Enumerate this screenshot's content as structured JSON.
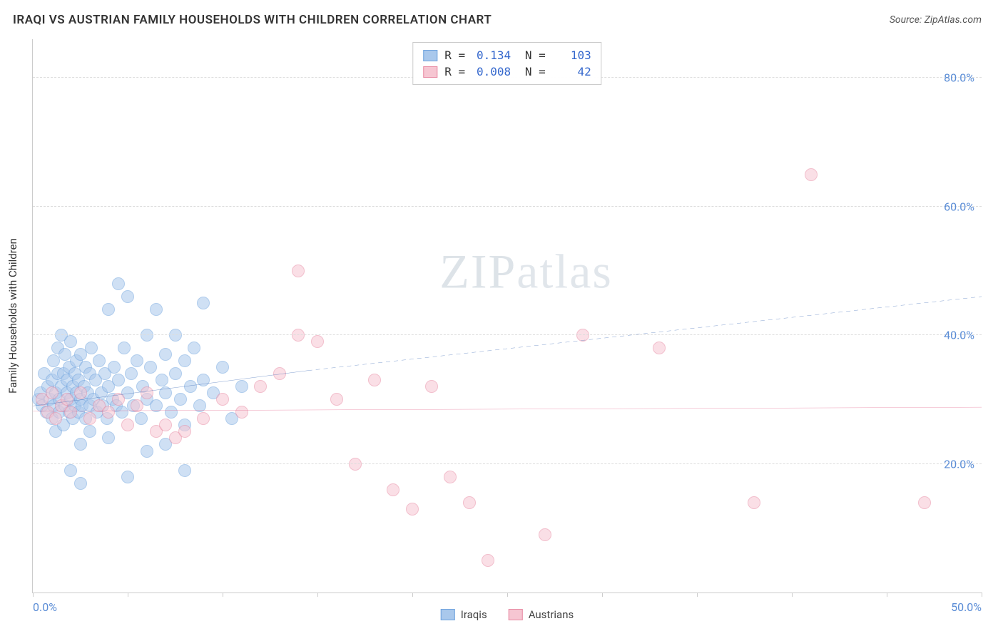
{
  "header": {
    "title": "IRAQI VS AUSTRIAN FAMILY HOUSEHOLDS WITH CHILDREN CORRELATION CHART",
    "source_label": "Source: ",
    "source_name": "ZipAtlas.com"
  },
  "watermark": {
    "bold": "ZIP",
    "light": "atlas"
  },
  "chart": {
    "type": "scatter",
    "y_axis_label": "Family Households with Children",
    "xlim": [
      0,
      50
    ],
    "ylim": [
      0,
      86
    ],
    "background_color": "#ffffff",
    "grid_color": "#dddddd",
    "axis_color": "#cccccc",
    "tick_label_color": "#5b8dd6",
    "tick_fontsize": 16,
    "axis_label_fontsize": 15,
    "x_ticks": [
      {
        "v": 0,
        "label": "0.0%"
      },
      {
        "v": 5,
        "label": ""
      },
      {
        "v": 10,
        "label": ""
      },
      {
        "v": 15,
        "label": ""
      },
      {
        "v": 20,
        "label": ""
      },
      {
        "v": 25,
        "label": ""
      },
      {
        "v": 30,
        "label": ""
      },
      {
        "v": 35,
        "label": ""
      },
      {
        "v": 40,
        "label": ""
      },
      {
        "v": 45,
        "label": ""
      },
      {
        "v": 50,
        "label": "50.0%"
      }
    ],
    "y_ticks": [
      {
        "v": 20,
        "label": "20.0%"
      },
      {
        "v": 40,
        "label": "40.0%"
      },
      {
        "v": 60,
        "label": "60.0%"
      },
      {
        "v": 80,
        "label": "80.0%"
      }
    ],
    "marker_radius": 9,
    "marker_opacity": 0.55,
    "series": [
      {
        "key": "iraqis",
        "name": "Iraqis",
        "color_fill": "#a9c8ec",
        "color_stroke": "#6fa3de",
        "R": "0.134",
        "N": "103",
        "trend": {
          "x1": 0,
          "y1": 29,
          "x2_solid": 14.5,
          "y2_solid": 34.5,
          "x2_dash": 50,
          "y2_dash": 46,
          "color": "#2f5fb0",
          "width": 2
        },
        "points": [
          [
            0.3,
            30
          ],
          [
            0.4,
            31
          ],
          [
            0.5,
            29
          ],
          [
            0.6,
            34
          ],
          [
            0.7,
            28
          ],
          [
            0.8,
            32
          ],
          [
            0.9,
            30
          ],
          [
            1.0,
            27
          ],
          [
            1.0,
            33
          ],
          [
            1.1,
            36
          ],
          [
            1.1,
            29
          ],
          [
            1.2,
            31
          ],
          [
            1.2,
            25
          ],
          [
            1.3,
            34
          ],
          [
            1.3,
            38
          ],
          [
            1.4,
            30
          ],
          [
            1.4,
            28
          ],
          [
            1.5,
            40
          ],
          [
            1.5,
            32
          ],
          [
            1.6,
            26
          ],
          [
            1.6,
            34
          ],
          [
            1.7,
            29
          ],
          [
            1.7,
            37
          ],
          [
            1.8,
            31
          ],
          [
            1.8,
            33
          ],
          [
            1.9,
            28
          ],
          [
            1.9,
            35
          ],
          [
            2.0,
            30
          ],
          [
            2.0,
            39
          ],
          [
            2.1,
            27
          ],
          [
            2.1,
            32
          ],
          [
            2.2,
            34
          ],
          [
            2.2,
            29
          ],
          [
            2.3,
            36
          ],
          [
            2.3,
            31
          ],
          [
            2.4,
            28
          ],
          [
            2.4,
            33
          ],
          [
            2.5,
            30
          ],
          [
            2.5,
            37
          ],
          [
            2.6,
            29
          ],
          [
            2.7,
            32
          ],
          [
            2.8,
            35
          ],
          [
            2.8,
            27
          ],
          [
            2.9,
            31
          ],
          [
            3.0,
            34
          ],
          [
            3.0,
            29
          ],
          [
            3.1,
            38
          ],
          [
            3.2,
            30
          ],
          [
            3.3,
            33
          ],
          [
            3.4,
            28
          ],
          [
            3.5,
            36
          ],
          [
            3.6,
            31
          ],
          [
            3.7,
            29
          ],
          [
            3.8,
            34
          ],
          [
            3.9,
            27
          ],
          [
            4.0,
            32
          ],
          [
            4.0,
            44
          ],
          [
            4.2,
            30
          ],
          [
            4.3,
            35
          ],
          [
            4.4,
            29
          ],
          [
            4.5,
            33
          ],
          [
            4.5,
            48
          ],
          [
            4.7,
            28
          ],
          [
            4.8,
            38
          ],
          [
            5.0,
            31
          ],
          [
            5.0,
            46
          ],
          [
            5.2,
            34
          ],
          [
            5.3,
            29
          ],
          [
            5.5,
            36
          ],
          [
            5.7,
            27
          ],
          [
            5.8,
            32
          ],
          [
            6.0,
            30
          ],
          [
            6.0,
            40
          ],
          [
            6.2,
            35
          ],
          [
            6.5,
            29
          ],
          [
            6.5,
            44
          ],
          [
            6.8,
            33
          ],
          [
            7.0,
            31
          ],
          [
            7.0,
            37
          ],
          [
            7.3,
            28
          ],
          [
            7.5,
            34
          ],
          [
            7.5,
            40
          ],
          [
            7.8,
            30
          ],
          [
            8.0,
            36
          ],
          [
            8.0,
            26
          ],
          [
            8.3,
            32
          ],
          [
            8.5,
            38
          ],
          [
            8.8,
            29
          ],
          [
            9.0,
            33
          ],
          [
            9.0,
            45
          ],
          [
            9.5,
            31
          ],
          [
            10.0,
            35
          ],
          [
            10.5,
            27
          ],
          [
            11.0,
            32
          ],
          [
            2.0,
            19
          ],
          [
            2.5,
            23
          ],
          [
            3.0,
            25
          ],
          [
            4.0,
            24
          ],
          [
            5.0,
            18
          ],
          [
            6.0,
            22
          ],
          [
            7.0,
            23
          ],
          [
            8.0,
            19
          ],
          [
            2.5,
            17
          ]
        ]
      },
      {
        "key": "austrians",
        "name": "Austrians",
        "color_fill": "#f6c6d2",
        "color_stroke": "#e88aa3",
        "R": "0.008",
        "N": "42",
        "trend": {
          "x1": 0,
          "y1": 28.2,
          "x2_solid": 50,
          "y2_solid": 28.8,
          "x2_dash": 50,
          "y2_dash": 28.8,
          "color": "#e05a85",
          "width": 2
        },
        "points": [
          [
            0.5,
            30
          ],
          [
            0.8,
            28
          ],
          [
            1.0,
            31
          ],
          [
            1.2,
            27
          ],
          [
            1.5,
            29
          ],
          [
            1.8,
            30
          ],
          [
            2.0,
            28
          ],
          [
            2.5,
            31
          ],
          [
            3.0,
            27
          ],
          [
            3.5,
            29
          ],
          [
            4.0,
            28
          ],
          [
            4.5,
            30
          ],
          [
            5.0,
            26
          ],
          [
            5.5,
            29
          ],
          [
            6.0,
            31
          ],
          [
            6.5,
            25
          ],
          [
            7.0,
            26
          ],
          [
            7.5,
            24
          ],
          [
            8.0,
            25
          ],
          [
            9.0,
            27
          ],
          [
            10.0,
            30
          ],
          [
            11.0,
            28
          ],
          [
            12.0,
            32
          ],
          [
            13.0,
            34
          ],
          [
            14.0,
            40
          ],
          [
            15.0,
            39
          ],
          [
            16.0,
            30
          ],
          [
            17.0,
            20
          ],
          [
            18.0,
            33
          ],
          [
            19.0,
            16
          ],
          [
            20.0,
            13
          ],
          [
            21.0,
            32
          ],
          [
            22.0,
            18
          ],
          [
            23.0,
            14
          ],
          [
            24.0,
            5
          ],
          [
            27.0,
            9
          ],
          [
            29.0,
            40
          ],
          [
            33.0,
            38
          ],
          [
            38.0,
            14
          ],
          [
            41.0,
            65
          ],
          [
            47.0,
            14
          ],
          [
            14.0,
            50
          ]
        ]
      }
    ],
    "legend": {
      "items": [
        {
          "key": "iraqis",
          "label": "Iraqis"
        },
        {
          "key": "austrians",
          "label": "Austrians"
        }
      ]
    }
  }
}
